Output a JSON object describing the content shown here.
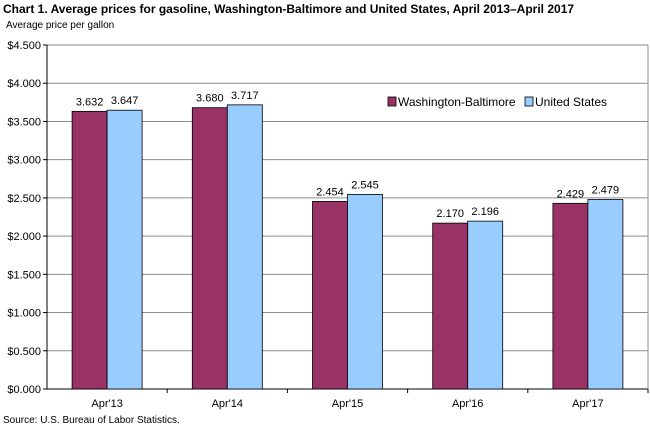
{
  "title": "Chart 1. Average prices for gasoline, Washington-Baltimore and United States, April 2013–April 2017",
  "source": "Source: U.S. Bureau of Labor Statistics.",
  "chart_data": {
    "type": "bar",
    "title": "Chart 1. Average prices for gasoline, Washington-Baltimore and United States, April 2013–April 2017",
    "ylabel": "Average price per gallon",
    "xlabel": "",
    "categories": [
      "Apr'13",
      "Apr'14",
      "Apr'15",
      "Apr'16",
      "Apr'17"
    ],
    "series": [
      {
        "name": "Washington-Baltimore",
        "color": "#993366",
        "values": [
          3.632,
          3.68,
          2.454,
          2.17,
          2.429
        ]
      },
      {
        "name": "United States",
        "color": "#99ccff",
        "values": [
          3.647,
          3.717,
          2.545,
          2.196,
          2.479
        ]
      }
    ],
    "ylim": [
      0,
      4.5
    ],
    "yticks": [
      "$0.000",
      "$0.500",
      "$1.000",
      "$1.500",
      "$2.000",
      "$2.500",
      "$3.000",
      "$3.500",
      "$4.000",
      "$4.500"
    ],
    "grid": true,
    "legend_position": "top-right",
    "data_labels": true
  }
}
